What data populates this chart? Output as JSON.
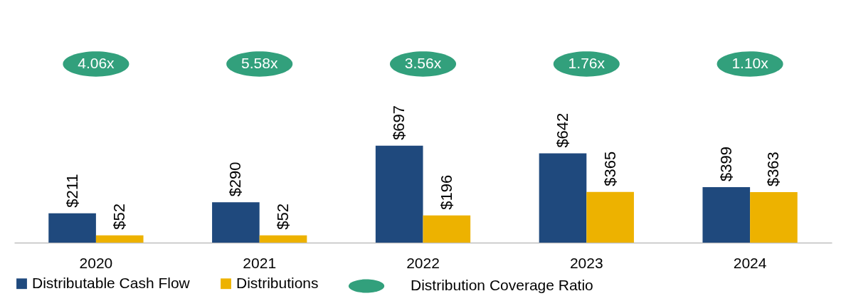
{
  "chart_data": {
    "type": "bar",
    "categories": [
      "2020",
      "2021",
      "2022",
      "2023",
      "2024"
    ],
    "series": [
      {
        "name": "Distributable Cash Flow",
        "color": "#1f497d",
        "values": [
          211,
          290,
          697,
          642,
          399
        ],
        "value_labels": [
          "$211",
          "$290",
          "$697",
          "$642",
          "$399"
        ]
      },
      {
        "name": "Distributions",
        "color": "#edb200",
        "values": [
          52,
          52,
          196,
          365,
          363
        ],
        "value_labels": [
          "$52",
          "$52",
          "$196",
          "$365",
          "$363"
        ]
      },
      {
        "name": "Distribution Coverage Ratio",
        "type": "scatter",
        "color": "#32a07c",
        "values": [
          null,
          null,
          null,
          null,
          null
        ],
        "value_labels": [
          "4.06x",
          "5.58x",
          "3.56x",
          "1.76x",
          "1.10x"
        ]
      }
    ],
    "legend": "bottom",
    "grid": false
  }
}
